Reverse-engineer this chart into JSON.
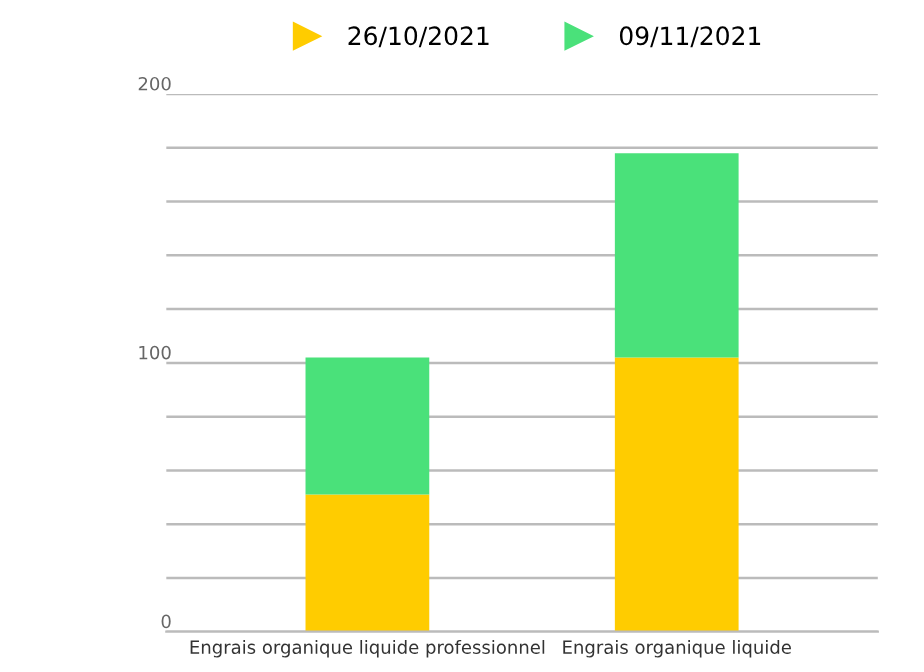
{
  "chart_data": {
    "type": "bar",
    "stacked": true,
    "categories": [
      "Engrais organique liquide professionnel",
      "Engrais organique liquide"
    ],
    "series": [
      {
        "name": "26/10/2021",
        "color": "#ffcc00",
        "values": [
          51,
          102
        ]
      },
      {
        "name": "09/11/2021",
        "color": "#4ae17a",
        "values": [
          51,
          76
        ]
      }
    ],
    "ylim": [
      0,
      200
    ],
    "yticks": [
      0,
      {
        "value": 20,
        "label": null
      },
      {
        "value": 40,
        "label": null
      },
      {
        "value": 60,
        "label": null
      },
      {
        "value": 80,
        "label": null
      },
      100,
      {
        "value": 120,
        "label": null
      },
      {
        "value": 140,
        "label": null
      },
      {
        "value": 160,
        "label": null
      },
      {
        "value": 180,
        "label": null
      },
      200
    ],
    "grid": "y",
    "legend": "top",
    "marker": "triangle"
  }
}
